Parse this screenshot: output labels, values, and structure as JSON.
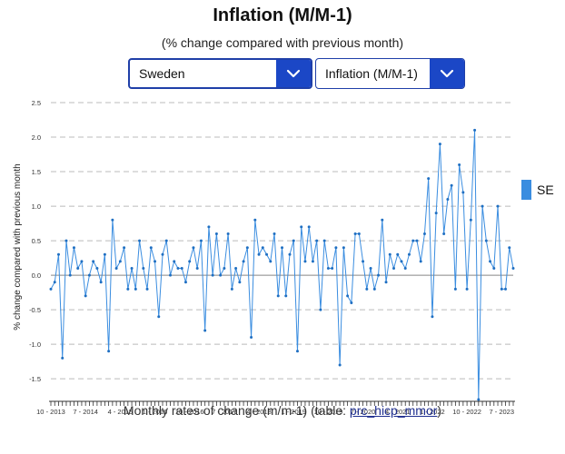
{
  "header": {
    "title": "Inflation (M/M-1)",
    "subtitle": "(% change compared with previous month)"
  },
  "controls": {
    "country_value": "Sweden",
    "indicator_value": "Inflation (M/M-1)",
    "dropdown_icon": "chevron-down-icon"
  },
  "legend": {
    "label": "SE",
    "color": "#3a8de0"
  },
  "footer": {
    "text": "Monthly rates of change (m/m-1) (table: ",
    "link": "prc_hicp_mmor",
    "close": ")"
  },
  "chart_data": {
    "type": "line",
    "title": "",
    "ylabel": "% change compared with previous month",
    "xlabel": "",
    "ylim": [
      -1.8,
      2.5
    ],
    "yticks": [
      "2.5",
      "2.0",
      "1.5",
      "1.0",
      "0.5",
      "0.0",
      "-0.5",
      "-1.0",
      "-1.5"
    ],
    "ytick_values": [
      2.5,
      2.0,
      1.5,
      1.0,
      0.5,
      0.0,
      -0.5,
      -1.0,
      -1.5
    ],
    "grid": "horizontal dashed",
    "legend_position": "right",
    "x_start": "2013-10",
    "x_end": "2023-09",
    "x_ticks": [
      {
        "label": "10 - 2013",
        "month": "2013-10"
      },
      {
        "label": "7 - 2014",
        "month": "2014-07"
      },
      {
        "label": "4 - 2015",
        "month": "2015-04"
      },
      {
        "label": "1 - 2016",
        "month": "2016-01"
      },
      {
        "label": "10 - 2016",
        "month": "2016-10"
      },
      {
        "label": "7 - 2017",
        "month": "2017-07"
      },
      {
        "label": "4 - 2018",
        "month": "2018-04"
      },
      {
        "label": "1 - 2019",
        "month": "2019-01"
      },
      {
        "label": "10 - 2019",
        "month": "2019-10"
      },
      {
        "label": "7 - 2020",
        "month": "2020-07"
      },
      {
        "label": "4 - 2021",
        "month": "2021-04"
      },
      {
        "label": "1 - 2022",
        "month": "2022-01"
      },
      {
        "label": "10 - 2022",
        "month": "2022-10"
      },
      {
        "label": "7 - 2023",
        "month": "2023-07"
      }
    ],
    "series": [
      {
        "name": "SE",
        "color": "#3a8de0",
        "values": [
          -0.2,
          -0.1,
          0.3,
          -1.2,
          0.5,
          0.0,
          0.4,
          0.1,
          0.2,
          -0.3,
          0.0,
          0.2,
          0.1,
          -0.1,
          0.3,
          -1.1,
          0.8,
          0.1,
          0.2,
          0.4,
          -0.2,
          0.1,
          -0.2,
          0.5,
          0.1,
          -0.2,
          0.4,
          0.2,
          -0.6,
          0.3,
          0.5,
          0.0,
          0.2,
          0.1,
          0.1,
          -0.1,
          0.2,
          0.4,
          0.1,
          0.5,
          -0.8,
          0.7,
          0.0,
          0.6,
          0.0,
          0.1,
          0.6,
          -0.2,
          0.1,
          -0.1,
          0.2,
          0.4,
          -0.9,
          0.8,
          0.3,
          0.4,
          0.3,
          0.2,
          0.6,
          -0.3,
          0.4,
          -0.3,
          0.3,
          0.5,
          -1.1,
          0.7,
          0.2,
          0.7,
          0.2,
          0.5,
          -0.5,
          0.5,
          0.1,
          0.1,
          0.4,
          -1.3,
          0.4,
          -0.3,
          -0.4,
          0.6,
          0.6,
          0.2,
          -0.2,
          0.1,
          -0.2,
          0.0,
          0.8,
          -0.1,
          0.3,
          0.1,
          0.3,
          0.2,
          0.1,
          0.3,
          0.5,
          0.5,
          0.2,
          0.6,
          1.4,
          -0.6,
          0.9,
          1.9,
          0.6,
          1.1,
          1.3,
          -0.2,
          1.6,
          1.2,
          -0.2,
          0.8,
          2.1,
          -1.8,
          1.0,
          0.5,
          0.2,
          0.1,
          1.0,
          -0.2,
          -0.2,
          0.4,
          0.1
        ]
      }
    ]
  }
}
